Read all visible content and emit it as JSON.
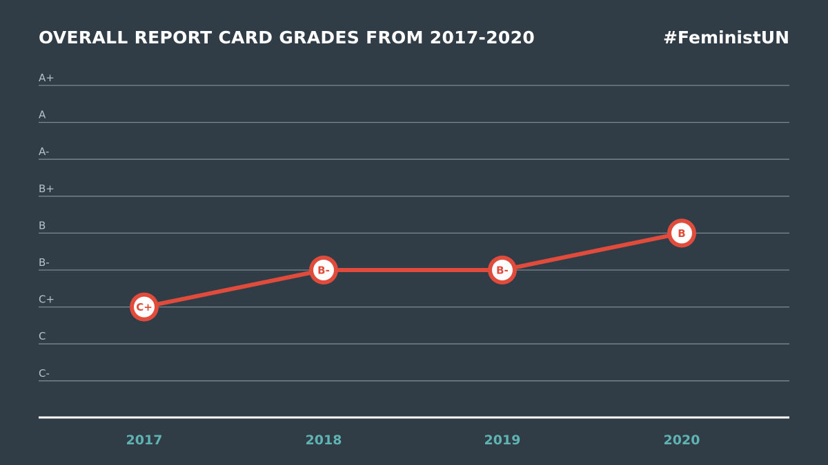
{
  "header": {
    "title": "OVERALL REPORT CARD GRADES FROM 2017-2020",
    "hashtag": "#FeministUN"
  },
  "colors": {
    "background": "#303d47",
    "gridline": "#7d8a93",
    "axis": "#ffffff",
    "grade_label": "#b8c2c9",
    "year_label": "#5fb3b3",
    "line": "#e14b3b",
    "marker_fill": "#e14b3b",
    "marker_ring": "#ffffff"
  },
  "chart_data": {
    "type": "line",
    "title": "OVERALL REPORT CARD GRADES FROM 2017-2020",
    "xlabel": "",
    "ylabel": "",
    "categories": [
      "2017",
      "2018",
      "2019",
      "2020"
    ],
    "y_scale": [
      "C-",
      "C",
      "C+",
      "B-",
      "B",
      "B+",
      "A-",
      "A",
      "A+"
    ],
    "series": [
      {
        "values": [
          "C+",
          "B-",
          "B-",
          "B"
        ],
        "point_labels": [
          "C+",
          "B-",
          "B-",
          "B"
        ]
      }
    ],
    "grid": true,
    "legend": "none"
  }
}
